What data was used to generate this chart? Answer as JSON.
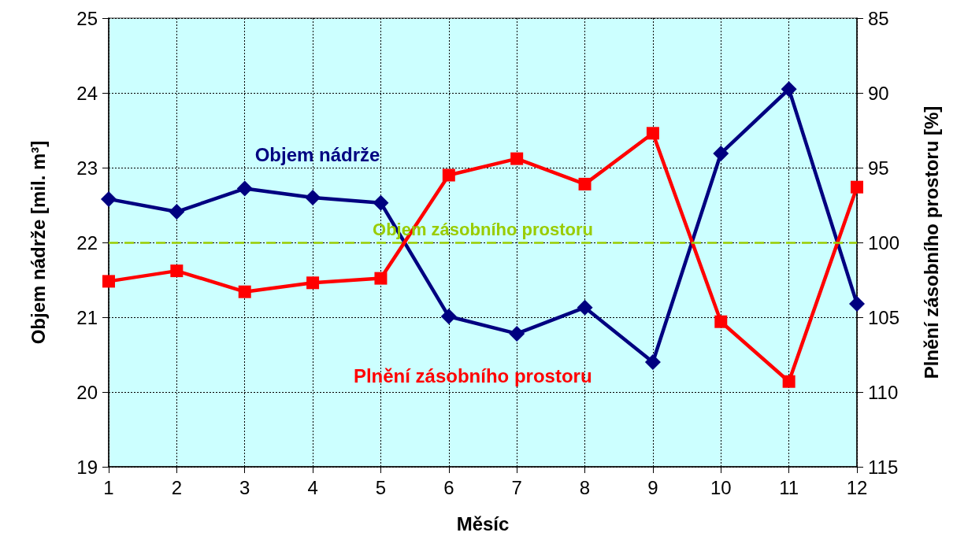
{
  "chart_data": {
    "type": "line",
    "xlabel": "Měsíc",
    "ylabel": "Objem nádrže [mil. m³]",
    "y2label": "Plnění zásobního prostoru [%]",
    "x": [
      1,
      2,
      3,
      4,
      5,
      6,
      7,
      8,
      9,
      10,
      11,
      12
    ],
    "xlim": [
      1,
      12
    ],
    "xticks": [
      1,
      2,
      3,
      4,
      5,
      6,
      7,
      8,
      9,
      10,
      11,
      12
    ],
    "series": [
      {
        "name": "Objem nádrže",
        "color": "#000080",
        "marker": "diamond",
        "values": [
          22.58,
          22.41,
          22.72,
          22.6,
          22.53,
          21.01,
          20.78,
          21.13,
          20.4,
          23.19,
          24.05,
          21.18
        ]
      },
      {
        "name": "Plnění zásobního prostoru",
        "color": "#ff0000",
        "marker": "square",
        "axis": "y2",
        "values": [
          102.6,
          101.9,
          103.3,
          102.7,
          102.4,
          95.5,
          94.4,
          96.1,
          92.7,
          105.3,
          109.3,
          96.3
        ]
      }
    ],
    "ylim": [
      19,
      25
    ],
    "yticks": [
      19,
      20,
      21,
      22,
      23,
      24,
      25
    ],
    "y2lim": [
      115,
      85
    ],
    "y2ticks": [
      85,
      90,
      95,
      100,
      105,
      110,
      115
    ],
    "ref_lines": [
      {
        "axis": "y",
        "value": 22,
        "label": "Objem zásobního prostoru",
        "color": "#99cc00",
        "line_style": "dashed"
      }
    ],
    "grid": true,
    "line_style": "solid"
  }
}
